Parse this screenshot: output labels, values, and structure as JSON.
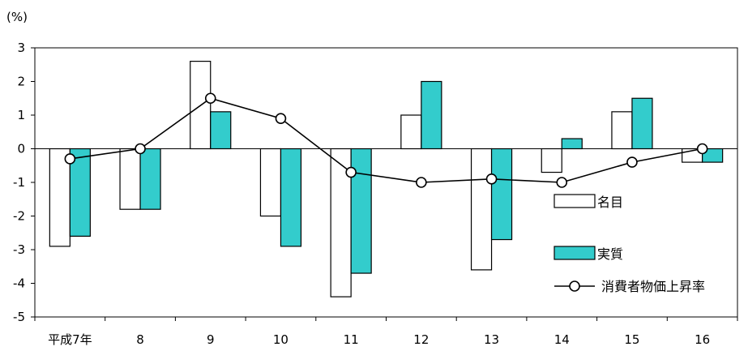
{
  "chart_data": {
    "type": "bar",
    "title": "",
    "xlabel": "",
    "ylabel": "(%)",
    "ylim": [
      -5,
      3
    ],
    "yticks": [
      3,
      2,
      1,
      0,
      -1,
      -2,
      -3,
      -4,
      -5
    ],
    "categories": [
      "平成7年",
      "8",
      "9",
      "10",
      "11",
      "12",
      "13",
      "14",
      "15",
      "16"
    ],
    "grid": false,
    "legend_position": "bottom-right",
    "series": [
      {
        "name": "名目",
        "type": "bar",
        "color": "#ffffff",
        "values": [
          -2.9,
          -1.8,
          2.6,
          -2.0,
          -4.4,
          1.0,
          -3.6,
          -0.7,
          1.1,
          -0.4
        ]
      },
      {
        "name": "実質",
        "type": "bar",
        "color": "#33cccc",
        "values": [
          -2.6,
          -1.8,
          1.1,
          -2.9,
          -3.7,
          2.0,
          -2.7,
          0.3,
          1.5,
          -0.4
        ]
      },
      {
        "name": "消費者物価上昇率",
        "type": "line",
        "color": "#000000",
        "values": [
          -0.3,
          0.0,
          1.5,
          0.9,
          -0.7,
          -1.0,
          -0.9,
          -1.0,
          -0.4,
          0.0
        ]
      }
    ]
  }
}
